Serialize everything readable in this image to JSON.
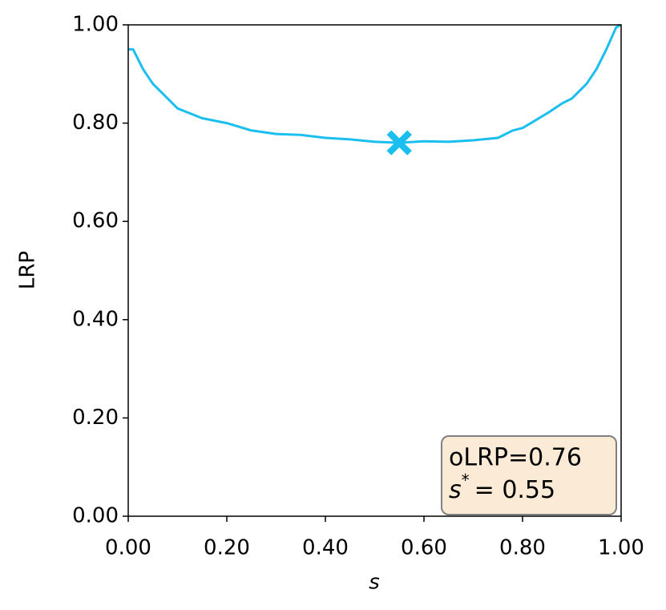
{
  "chart_data": {
    "type": "line",
    "xlabel": "s",
    "ylabel": "LRP",
    "x": [
      0,
      0.01,
      0.02,
      0.03,
      0.05,
      0.07,
      0.1,
      0.15,
      0.2,
      0.25,
      0.3,
      0.35,
      0.4,
      0.45,
      0.5,
      0.55,
      0.6,
      0.65,
      0.7,
      0.75,
      0.78,
      0.8,
      0.85,
      0.88,
      0.9,
      0.93,
      0.95,
      0.97,
      0.99,
      1.0
    ],
    "series": [
      {
        "color": "#1abff0",
        "values": [
          0.95,
          0.95,
          0.93,
          0.91,
          0.88,
          0.86,
          0.83,
          0.81,
          0.8,
          0.785,
          0.778,
          0.776,
          0.77,
          0.767,
          0.762,
          0.76,
          0.763,
          0.762,
          0.765,
          0.77,
          0.785,
          0.79,
          0.82,
          0.84,
          0.85,
          0.88,
          0.91,
          0.95,
          0.995,
          1.0
        ]
      }
    ],
    "marker": {
      "x": 0.55,
      "y": 0.76,
      "color": "#1abff0"
    },
    "annotation": {
      "line1": "oLRP=0.76",
      "symbol": "s",
      "superscript": "*",
      "rest": "= 0.55"
    },
    "xlim": [
      0,
      1
    ],
    "ylim": [
      0,
      1
    ],
    "xticks": [
      {
        "value": 0,
        "label": "0.00"
      },
      {
        "value": 0.2,
        "label": "0.20"
      },
      {
        "value": 0.4,
        "label": "0.40"
      },
      {
        "value": 0.6,
        "label": "0.60"
      },
      {
        "value": 0.8,
        "label": "0.80"
      },
      {
        "value": 1,
        "label": "1.00"
      }
    ],
    "yticks": [
      {
        "value": 0,
        "label": "0.00"
      },
      {
        "value": 0.2,
        "label": "0.20"
      },
      {
        "value": 0.4,
        "label": "0.40"
      },
      {
        "value": 0.6,
        "label": "0.60"
      },
      {
        "value": 0.8,
        "label": "0.80"
      },
      {
        "value": 1,
        "label": "1.00"
      }
    ]
  }
}
